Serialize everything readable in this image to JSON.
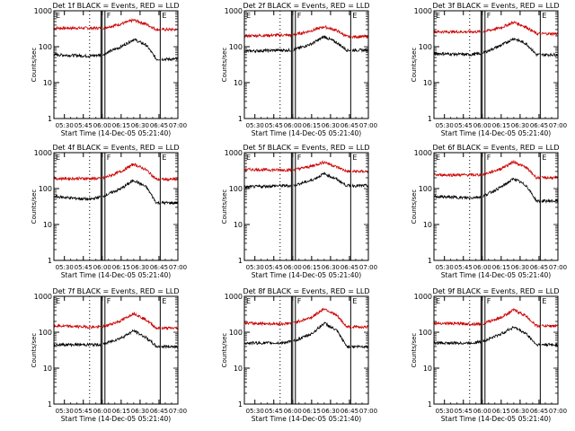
{
  "figure": {
    "xlabel": "Start Time (14-Dec-05 05:21:40)",
    "ylabel": "Counts/sec",
    "x_tick_labels": [
      "05:30",
      "05:45",
      "06:00",
      "06:15",
      "06:30",
      "06:45",
      "07:00"
    ],
    "y_tick_labels": [
      "1",
      "10",
      "100",
      "1000"
    ],
    "colors": {
      "events": "#000000",
      "lld": "#cc0000",
      "axes": "#000000"
    }
  },
  "chart_data": [
    {
      "type": "line",
      "title": "Det 1f BLACK = Events, RED = LLD",
      "flag_e_label": "E",
      "flag_f_label": "F",
      "yscale": "log",
      "ylim": [
        1,
        1000
      ],
      "xlim": [
        "05:21:40",
        "07:00"
      ],
      "grid": false,
      "legend": "none",
      "x": [
        "05:21:40",
        "05:50",
        "06:00",
        "06:15",
        "06:25",
        "06:35",
        "06:43",
        "06:52",
        "07:00"
      ],
      "series": [
        {
          "values": [
            330,
            330,
            330,
            430,
            550,
            420,
            300,
            300,
            300
          ]
        },
        {
          "values": [
            60,
            55,
            60,
            100,
            160,
            110,
            45,
            45,
            45
          ]
        }
      ]
    },
    {
      "type": "line",
      "title": "Det 2f BLACK = Events, RED = LLD",
      "flag_e_label": "E",
      "flag_f_label": "F",
      "yscale": "log",
      "ylim": [
        1,
        1000
      ],
      "xlim": [
        "05:21:40",
        "07:00"
      ],
      "grid": false,
      "legend": "none",
      "x": [
        "05:21:40",
        "05:50",
        "06:00",
        "06:15",
        "06:25",
        "06:35",
        "06:43",
        "06:52",
        "07:00"
      ],
      "series": [
        {
          "values": [
            200,
            210,
            210,
            280,
            360,
            280,
            190,
            190,
            190
          ]
        },
        {
          "values": [
            75,
            80,
            80,
            120,
            190,
            130,
            80,
            80,
            80
          ]
        }
      ]
    },
    {
      "type": "line",
      "title": "Det 3f BLACK = Events, RED = LLD",
      "flag_e_label": "E",
      "flag_f_label": "F",
      "yscale": "log",
      "ylim": [
        1,
        1000
      ],
      "xlim": [
        "05:21:40",
        "07:00"
      ],
      "grid": false,
      "legend": "none",
      "x": [
        "05:21:40",
        "05:50",
        "06:00",
        "06:15",
        "06:25",
        "06:35",
        "06:43",
        "06:52",
        "07:00"
      ],
      "series": [
        {
          "values": [
            260,
            260,
            260,
            340,
            480,
            350,
            230,
            230,
            230
          ]
        },
        {
          "values": [
            65,
            60,
            65,
            110,
            170,
            120,
            60,
            60,
            60
          ]
        }
      ]
    },
    {
      "type": "line",
      "title": "Det 4f BLACK = Events, RED = LLD",
      "flag_e_label": "E",
      "flag_f_label": "F",
      "yscale": "log",
      "ylim": [
        1,
        1000
      ],
      "xlim": [
        "05:21:40",
        "07:00"
      ],
      "grid": false,
      "legend": "none",
      "x": [
        "05:21:40",
        "05:50",
        "06:00",
        "06:15",
        "06:25",
        "06:35",
        "06:43",
        "06:52",
        "07:00"
      ],
      "series": [
        {
          "values": [
            190,
            190,
            190,
            300,
            480,
            330,
            180,
            180,
            180
          ]
        },
        {
          "values": [
            60,
            50,
            60,
            100,
            170,
            110,
            40,
            40,
            40
          ]
        }
      ]
    },
    {
      "type": "line",
      "title": "Det 5f BLACK = Events, RED = LLD",
      "flag_e_label": "E",
      "flag_f_label": "F",
      "yscale": "log",
      "ylim": [
        1,
        1000
      ],
      "xlim": [
        "05:21:40",
        "07:00"
      ],
      "grid": false,
      "legend": "none",
      "x": [
        "05:21:40",
        "05:50",
        "06:00",
        "06:15",
        "06:25",
        "06:35",
        "06:43",
        "06:52",
        "07:00"
      ],
      "series": [
        {
          "values": [
            340,
            330,
            330,
            420,
            550,
            400,
            300,
            300,
            300
          ]
        },
        {
          "values": [
            110,
            120,
            120,
            170,
            260,
            180,
            120,
            120,
            120
          ]
        }
      ]
    },
    {
      "type": "line",
      "title": "Det 6f BLACK = Events, RED = LLD",
      "flag_e_label": "E",
      "flag_f_label": "F",
      "yscale": "log",
      "ylim": [
        1,
        1000
      ],
      "xlim": [
        "05:21:40",
        "07:00"
      ],
      "grid": false,
      "legend": "none",
      "x": [
        "05:21:40",
        "05:50",
        "06:00",
        "06:15",
        "06:25",
        "06:35",
        "06:43",
        "06:52",
        "07:00"
      ],
      "series": [
        {
          "values": [
            240,
            240,
            240,
            360,
            560,
            380,
            200,
            200,
            200
          ]
        },
        {
          "values": [
            60,
            55,
            60,
            110,
            190,
            120,
            45,
            45,
            45
          ]
        }
      ]
    },
    {
      "type": "line",
      "title": "Det 7f BLACK = Events, RED = LLD",
      "flag_e_label": "E",
      "flag_f_label": "F",
      "yscale": "log",
      "ylim": [
        1,
        1000
      ],
      "xlim": [
        "05:21:40",
        "07:00"
      ],
      "grid": false,
      "legend": "none",
      "x": [
        "05:21:40",
        "05:50",
        "06:00",
        "06:15",
        "06:25",
        "06:35",
        "06:43",
        "06:52",
        "07:00"
      ],
      "series": [
        {
          "values": [
            150,
            140,
            140,
            210,
            340,
            220,
            130,
            130,
            130
          ]
        },
        {
          "values": [
            45,
            45,
            45,
            70,
            110,
            70,
            40,
            40,
            40
          ]
        }
      ]
    },
    {
      "type": "line",
      "title": "Det 8f BLACK = Events, RED = LLD",
      "flag_e_label": "E",
      "flag_f_label": "F",
      "yscale": "log",
      "ylim": [
        1,
        1000
      ],
      "xlim": [
        "05:21:40",
        "07:00"
      ],
      "grid": false,
      "legend": "none",
      "x": [
        "05:21:40",
        "05:50",
        "06:00",
        "06:15",
        "06:25",
        "06:35",
        "06:43",
        "06:52",
        "07:00"
      ],
      "series": [
        {
          "values": [
            180,
            170,
            180,
            260,
            460,
            290,
            140,
            140,
            140
          ]
        },
        {
          "values": [
            50,
            50,
            55,
            90,
            180,
            110,
            40,
            40,
            40
          ]
        }
      ]
    },
    {
      "type": "line",
      "title": "Det 9f BLACK = Events, RED = LLD",
      "flag_e_label": "E",
      "flag_f_label": "F",
      "yscale": "log",
      "ylim": [
        1,
        1000
      ],
      "xlim": [
        "05:21:40",
        "07:00"
      ],
      "grid": false,
      "legend": "none",
      "x": [
        "05:21:40",
        "05:50",
        "06:00",
        "06:15",
        "06:25",
        "06:35",
        "06:43",
        "06:52",
        "07:00"
      ],
      "series": [
        {
          "values": [
            180,
            170,
            170,
            260,
            420,
            280,
            150,
            150,
            150
          ]
        },
        {
          "values": [
            50,
            50,
            55,
            90,
            140,
            90,
            45,
            45,
            45
          ]
        }
      ]
    }
  ]
}
